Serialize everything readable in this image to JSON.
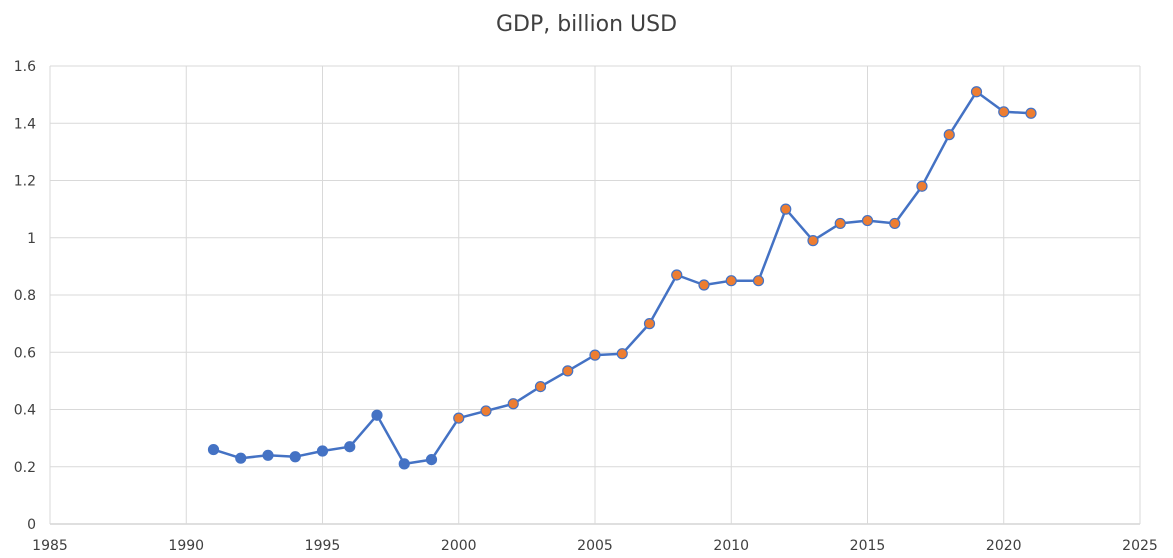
{
  "chart_data": {
    "type": "scatter",
    "title": "GDP, billion USD",
    "xlabel": "",
    "ylabel": "",
    "xlim": [
      1985,
      2025
    ],
    "ylim": [
      0,
      1.6
    ],
    "x_ticks": [
      1985,
      1990,
      1995,
      2000,
      2005,
      2010,
      2015,
      2020,
      2025
    ],
    "y_ticks": [
      0,
      0.2,
      0.4,
      0.6,
      0.8,
      1,
      1.2,
      1.4,
      1.6
    ],
    "grid": true,
    "legend": "none",
    "line_color": "#4472C4",
    "series": [
      {
        "color": "#4472C4",
        "x": [
          1991,
          1992,
          1993,
          1994,
          1995,
          1996,
          1997,
          1998,
          1999
        ],
        "values": [
          0.26,
          0.23,
          0.24,
          0.235,
          0.255,
          0.27,
          0.38,
          0.21,
          0.225
        ]
      },
      {
        "color": "#ED7D31",
        "x": [
          2000,
          2001,
          2002,
          2003,
          2004,
          2005,
          2006,
          2007,
          2008,
          2009,
          2010,
          2011,
          2012,
          2013,
          2014,
          2015,
          2016,
          2017,
          2018,
          2019,
          2020,
          2021
        ],
        "values": [
          0.37,
          0.395,
          0.42,
          0.48,
          0.535,
          0.59,
          0.595,
          0.7,
          0.87,
          0.835,
          0.85,
          0.85,
          1.1,
          0.99,
          1.05,
          1.06,
          1.05,
          1.18,
          1.36,
          1.51,
          1.44,
          1.435
        ]
      }
    ]
  }
}
